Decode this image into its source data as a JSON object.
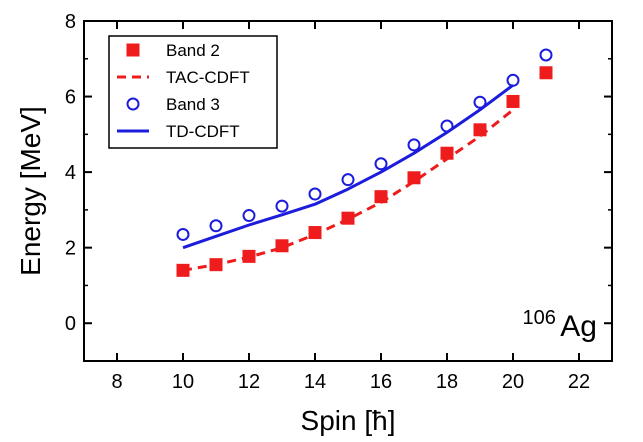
{
  "chart_data": {
    "type": "scatter",
    "xlabel": "Spin [ħ]",
    "ylabel": "Energy [MeV]",
    "xlim": [
      7,
      23
    ],
    "ylim": [
      -1,
      8
    ],
    "xticks": [
      8,
      10,
      12,
      14,
      16,
      18,
      20,
      22
    ],
    "yticks": [
      0,
      2,
      4,
      6,
      8
    ],
    "grid": false,
    "legend_position": "top-left",
    "annotation": {
      "sup": "106",
      "base": "Ag"
    },
    "series": [
      {
        "name": "Band 2",
        "kind": "marker-square-filled",
        "color": "#ee1c1c",
        "x": [
          10,
          11,
          12,
          13,
          14,
          15,
          16,
          17,
          18,
          19,
          20,
          21
        ],
        "y": [
          1.4,
          1.55,
          1.77,
          2.05,
          2.4,
          2.78,
          3.35,
          3.85,
          4.5,
          5.12,
          5.87,
          6.63
        ]
      },
      {
        "name": "TAC-CDFT",
        "kind": "line-dashed",
        "color": "#ee1c1c",
        "x": [
          10,
          11,
          12,
          13,
          14,
          15,
          16,
          17,
          18,
          19,
          20
        ],
        "y": [
          1.4,
          1.55,
          1.75,
          2.0,
          2.35,
          2.75,
          3.2,
          3.75,
          4.35,
          4.95,
          5.65
        ]
      },
      {
        "name": "Band 3",
        "kind": "marker-circle-open",
        "color": "#1c1cdc",
        "x": [
          10,
          11,
          12,
          13,
          14,
          15,
          16,
          17,
          18,
          19,
          20,
          21
        ],
        "y": [
          2.35,
          2.58,
          2.85,
          3.1,
          3.42,
          3.8,
          4.22,
          4.72,
          5.22,
          5.85,
          6.43,
          7.1
        ]
      },
      {
        "name": "TD-CDFT",
        "kind": "line-solid",
        "color": "#1c1cdc",
        "x": [
          10,
          11,
          12,
          13,
          14,
          15,
          16,
          17,
          18,
          19,
          20
        ],
        "y": [
          2.0,
          2.3,
          2.6,
          2.87,
          3.15,
          3.55,
          4.0,
          4.5,
          5.05,
          5.65,
          6.3
        ]
      }
    ]
  }
}
